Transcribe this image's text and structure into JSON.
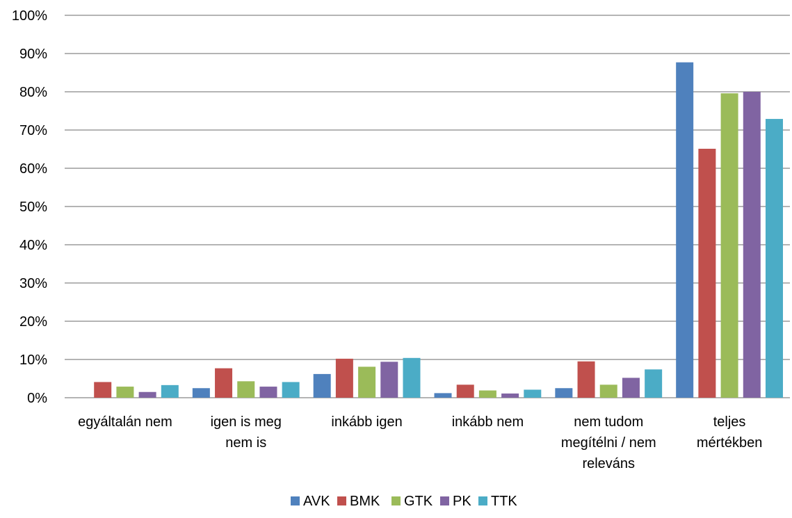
{
  "chart_data": {
    "type": "bar",
    "title": "",
    "xlabel": "",
    "ylabel": "",
    "ylim": [
      0,
      1
    ],
    "yticks": [
      "0%",
      "10%",
      "20%",
      "30%",
      "40%",
      "50%",
      "60%",
      "70%",
      "80%",
      "90%",
      "100%"
    ],
    "grid": true,
    "legend_position": "bottom",
    "categories": [
      "egyáltalán nem",
      "igen is meg nem is",
      "inkább igen",
      "inkább nem",
      "nem tudom megítélni / nem releváns",
      "teljes mértékben"
    ],
    "category_lines": [
      [
        "egyáltalán nem"
      ],
      [
        "igen is meg",
        "nem is"
      ],
      [
        "inkább igen"
      ],
      [
        "inkább nem"
      ],
      [
        "nem tudom",
        "megítélni / nem",
        "releváns"
      ],
      [
        "teljes",
        "mértékben"
      ]
    ],
    "series": [
      {
        "name": "AVK",
        "color": "#4F81BD",
        "values": [
          0.0,
          0.025,
          0.062,
          0.012,
          0.025,
          0.877
        ]
      },
      {
        "name": "BMK",
        "color": "#C0504D",
        "values": [
          0.041,
          0.077,
          0.102,
          0.034,
          0.095,
          0.651
        ]
      },
      {
        "name": "GTK",
        "color": "#9BBB59",
        "values": [
          0.029,
          0.043,
          0.081,
          0.019,
          0.034,
          0.796
        ]
      },
      {
        "name": "PK",
        "color": "#8064A2",
        "values": [
          0.015,
          0.029,
          0.094,
          0.011,
          0.052,
          0.8
        ]
      },
      {
        "name": "TTK",
        "color": "#4BACC6",
        "values": [
          0.033,
          0.041,
          0.104,
          0.021,
          0.074,
          0.729
        ]
      }
    ]
  }
}
